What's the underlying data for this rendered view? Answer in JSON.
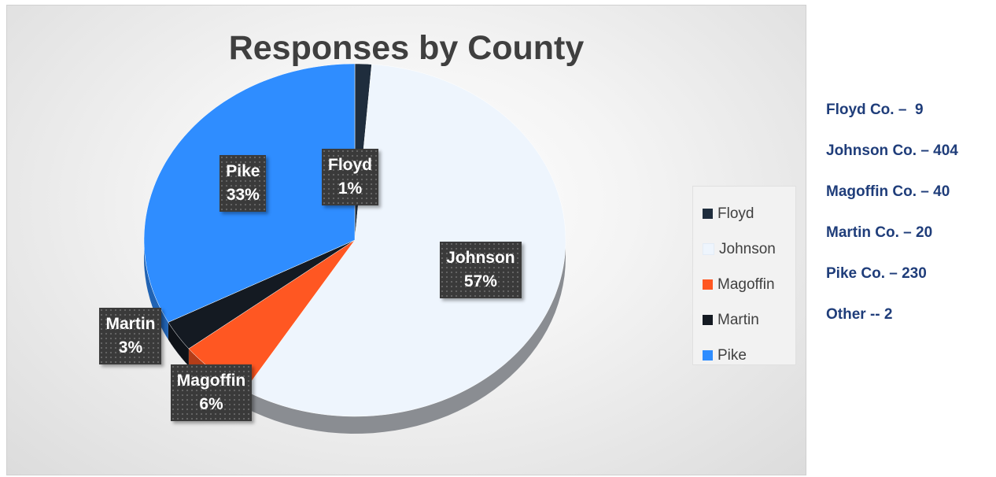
{
  "chart_data": {
    "type": "pie",
    "title": "Responses by County",
    "slices": [
      {
        "name": "Floyd",
        "value": 9,
        "percent_label": "1%",
        "color": "#1f2d3d"
      },
      {
        "name": "Johnson",
        "value": 404,
        "percent_label": "57%",
        "color": "#eef5fd"
      },
      {
        "name": "Magoffin",
        "value": 40,
        "percent_label": "6%",
        "color": "#ff5722"
      },
      {
        "name": "Martin",
        "value": 20,
        "percent_label": "3%",
        "color": "#141a22"
      },
      {
        "name": "Pike",
        "value": 230,
        "percent_label": "33%",
        "color": "#2f8dff"
      }
    ],
    "legend": {
      "position": "right",
      "entries": [
        "Floyd",
        "Johnson",
        "Magoffin",
        "Martin",
        "Pike"
      ]
    },
    "style": "3d-pie"
  },
  "side_totals": [
    "Floyd Co. –  9",
    "Johnson Co. – 404",
    "Magoffin Co. – 40",
    "Martin Co. – 20",
    "Pike Co. – 230",
    "Other -- 2"
  ]
}
